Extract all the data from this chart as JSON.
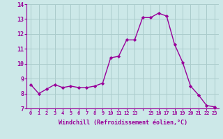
{
  "x": [
    0,
    1,
    2,
    3,
    4,
    5,
    6,
    7,
    8,
    9,
    10,
    11,
    12,
    13,
    14,
    15,
    16,
    17,
    18,
    19,
    20,
    21,
    22,
    23
  ],
  "y": [
    8.6,
    8.0,
    8.3,
    8.6,
    8.4,
    8.5,
    8.4,
    8.4,
    8.5,
    8.7,
    10.4,
    10.5,
    11.6,
    11.6,
    13.1,
    13.1,
    13.4,
    13.2,
    11.3,
    10.1,
    8.5,
    7.9,
    7.2,
    7.1
  ],
  "line_color": "#990099",
  "marker": "D",
  "marker_size": 2.2,
  "bg_color": "#cce8e8",
  "grid_color": "#aacccc",
  "xlabel": "Windchill (Refroidissement éolien,°C)",
  "xlabel_color": "#990099",
  "tick_color": "#990099",
  "ylim": [
    7,
    14
  ],
  "yticks": [
    7,
    8,
    9,
    10,
    11,
    12,
    13,
    14
  ],
  "xticks": [
    0,
    1,
    2,
    3,
    4,
    5,
    6,
    7,
    8,
    9,
    10,
    11,
    12,
    13,
    15,
    16,
    17,
    18,
    19,
    20,
    21,
    22,
    23
  ],
  "xtick_labels": [
    "0",
    "1",
    "2",
    "3",
    "4",
    "5",
    "6",
    "7",
    "8",
    "9",
    "10",
    "11",
    "12",
    "13",
    "15",
    "16",
    "17",
    "18",
    "19",
    "20",
    "21",
    "22",
    "23"
  ],
  "line_width": 1.0
}
